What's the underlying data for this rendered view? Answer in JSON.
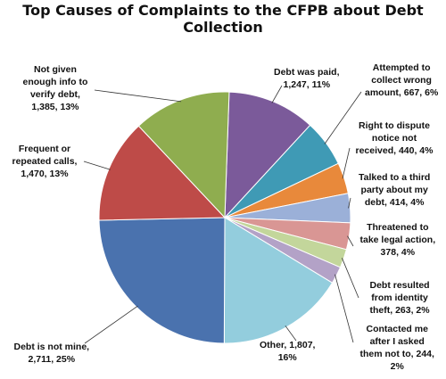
{
  "chart_data": {
    "type": "pie",
    "title": "Top Causes of Complaints to the CFPB about Debt Collection",
    "slices": [
      {
        "name": "Debt was paid",
        "value": 1247,
        "percent": "11%",
        "color": "#7b5a9a",
        "label_lines": [
          "Debt was paid,",
          "1,247, 11%"
        ]
      },
      {
        "name": "Attempted to collect wrong amount",
        "value": 667,
        "percent": "6%",
        "color": "#3f9ab5",
        "label_lines": [
          "Attempted to",
          "collect wrong",
          "amount, 667, 6%"
        ]
      },
      {
        "name": "Right to dispute notice not received",
        "value": 440,
        "percent": "4%",
        "color": "#e8893b",
        "label_lines": [
          "Right to dispute",
          "notice not",
          "received, 440, 4%"
        ]
      },
      {
        "name": "Talked to a third party about my debt",
        "value": 414,
        "percent": "4%",
        "color": "#9bb0d8",
        "label_lines": [
          "Talked to a third",
          "party about my",
          "debt, 414, 4%"
        ]
      },
      {
        "name": "Threatened to take legal action",
        "value": 378,
        "percent": "4%",
        "color": "#d99694",
        "label_lines": [
          "Threatened to",
          "take legal action,",
          "378, 4%"
        ]
      },
      {
        "name": "Debt resulted from identity theft",
        "value": 263,
        "percent": "2%",
        "color": "#c3d69b",
        "label_lines": [
          "Debt resulted",
          "from identity",
          "theft, 263, 2%"
        ]
      },
      {
        "name": "Contacted me after I asked them not to",
        "value": 244,
        "percent": "2%",
        "color": "#b3a2c7",
        "label_lines": [
          "Contacted me",
          "after I asked",
          "them not to, 244,",
          "2%"
        ]
      },
      {
        "name": "Other",
        "value": 1807,
        "percent": "16%",
        "color": "#93cddd",
        "label_lines": [
          "Other, 1,807,",
          "16%"
        ]
      },
      {
        "name": "Debt is not mine",
        "value": 2711,
        "percent": "25%",
        "color": "#4a72ae",
        "label_lines": [
          "Debt is not mine,",
          "2,711, 25%"
        ]
      },
      {
        "name": "Frequent or repeated calls",
        "value": 1470,
        "percent": "13%",
        "color": "#be4b48",
        "label_lines": [
          "Frequent or",
          "repeated calls,",
          "1,470, 13%"
        ]
      },
      {
        "name": "Not given enough info to verify debt",
        "value": 1385,
        "percent": "13%",
        "color": "#8fad4f",
        "label_lines": [
          "Not given",
          "enough info to",
          "verify debt,",
          "1,385, 13%"
        ]
      }
    ]
  }
}
